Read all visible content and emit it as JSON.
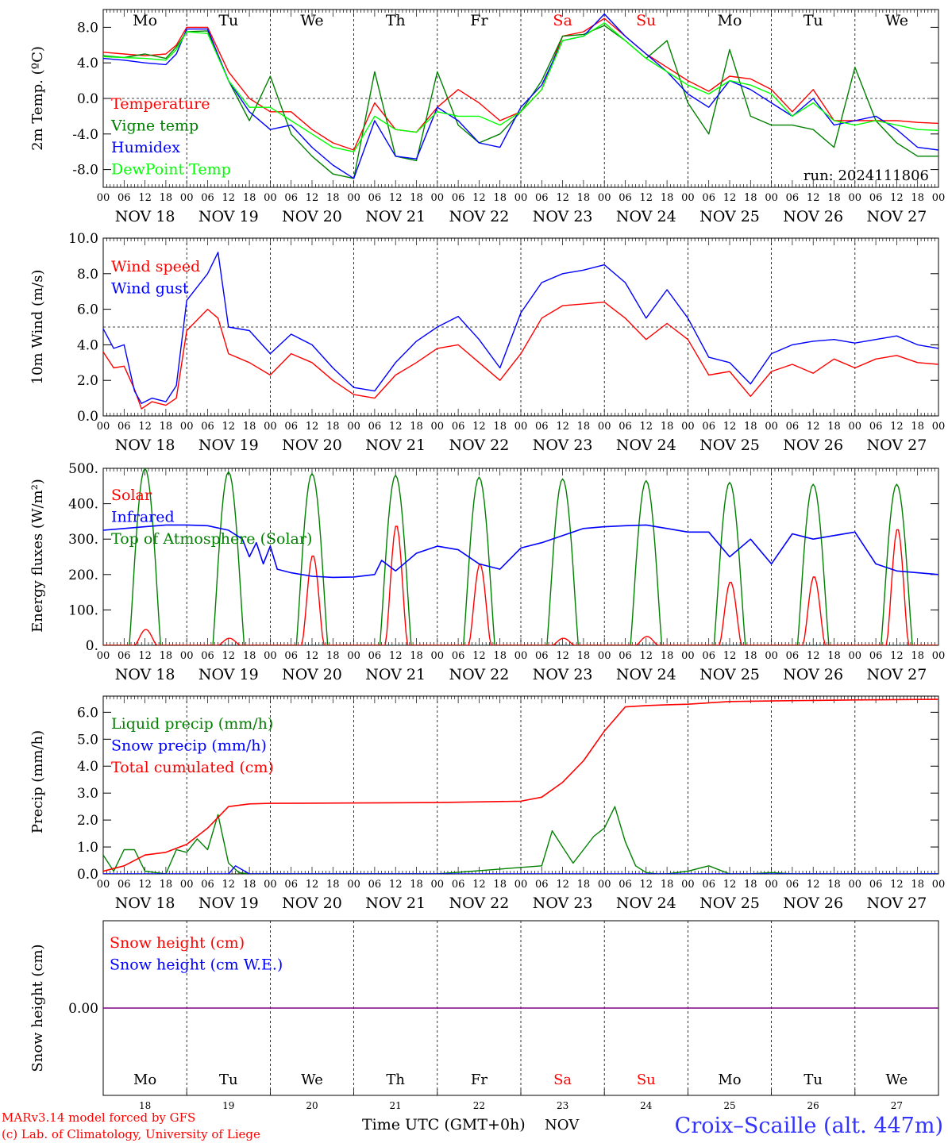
{
  "time_axis": {
    "hour_ticks": [
      "00",
      "06",
      "12",
      "18"
    ],
    "final_tick": "00",
    "dates": [
      "NOV 18",
      "NOV 19",
      "NOV 20",
      "NOV 21",
      "NOV 22",
      "NOV 23",
      "NOV 24",
      "NOV 25",
      "NOV 26",
      "NOV 27"
    ],
    "day_names": [
      "Mo",
      "Tu",
      "We",
      "Th",
      "Fr",
      "Sa",
      "Su",
      "Mo",
      "Tu",
      "We"
    ],
    "day_colors": [
      "#000000",
      "#000000",
      "#000000",
      "#000000",
      "#000000",
      "#ff0000",
      "#ff0000",
      "#000000",
      "#000000",
      "#000000"
    ],
    "day_numbers": [
      "18",
      "19",
      "20",
      "21",
      "22",
      "23",
      "24",
      "25",
      "26",
      "27"
    ]
  },
  "footer": {
    "model_line1": "MARv3.14 model forced by GFS",
    "model_line2": "(c) Lab. of Climatology, University of Liege",
    "xlabel": "Time UTC (GMT+0h)",
    "month": "NOV",
    "station": "Croix–Scaille (alt. 447m)"
  },
  "colors": {
    "red": "#ff0000",
    "green": "#008000",
    "blue": "#0000ff",
    "lightgreen": "#00ff00",
    "purple": "#800080",
    "station": "#3333ff"
  },
  "chart_data": [
    {
      "id": "temperature",
      "type": "line",
      "ylabel": "2m Temp. (ºC)",
      "ylim": [
        -10,
        10
      ],
      "yticks": [
        "8.0",
        "4.0",
        "0.0",
        "-4.0",
        "-8.0"
      ],
      "ytick_values": [
        8,
        4,
        0,
        -4,
        -8
      ],
      "ref_line": 0,
      "annotation": "run: 2024111806",
      "x": [
        0,
        6,
        12,
        18,
        21,
        24,
        30,
        36,
        42,
        48,
        54,
        60,
        66,
        72,
        78,
        84,
        90,
        96,
        102,
        108,
        114,
        120,
        126,
        132,
        138,
        144,
        150,
        156,
        162,
        168,
        174,
        180,
        186,
        192,
        198,
        204,
        210,
        216,
        222,
        228,
        234,
        240
      ],
      "series": [
        {
          "name": "Temperature",
          "color": "#ff0000",
          "values": [
            5.2,
            5.0,
            4.8,
            5.0,
            6.0,
            8.0,
            8.0,
            3.0,
            0.0,
            -1.5,
            -1.5,
            -3.5,
            -5.0,
            -5.8,
            -0.5,
            -3.5,
            -3.8,
            -1.0,
            1.0,
            -0.5,
            -2.5,
            -1.5,
            1.0,
            7.0,
            7.5,
            9.0,
            7.0,
            5.0,
            3.5,
            2.0,
            0.8,
            2.5,
            2.2,
            1.0,
            -1.5,
            1.0,
            -2.5,
            -2.5,
            -2.5,
            -2.5,
            -2.7,
            -2.8
          ]
        },
        {
          "name": "Vigne temp",
          "color": "#008000",
          "values": [
            4.8,
            4.6,
            5.0,
            4.5,
            5.8,
            7.5,
            7.6,
            2.0,
            -2.5,
            2.5,
            -4.0,
            -6.5,
            -8.5,
            -9.0,
            3.0,
            -6.5,
            -7.0,
            3.0,
            -3.0,
            -5.0,
            -4.0,
            -1.5,
            2.0,
            7.0,
            7.2,
            8.2,
            6.5,
            4.5,
            6.5,
            -0.5,
            -4.0,
            5.5,
            -2.0,
            -3.0,
            -3.0,
            -3.5,
            -5.5,
            3.5,
            -2.5,
            -5.0,
            -6.5,
            -6.5
          ]
        },
        {
          "name": "Humidex",
          "color": "#0000ff",
          "values": [
            4.5,
            4.3,
            4.0,
            3.8,
            5.0,
            7.8,
            7.8,
            2.0,
            -1.5,
            -3.5,
            -3.0,
            -5.5,
            -7.5,
            -9.0,
            -2.5,
            -6.5,
            -6.8,
            -1.0,
            -2.5,
            -5.0,
            -5.5,
            -1.0,
            1.5,
            6.5,
            7.0,
            9.5,
            7.0,
            5.0,
            3.0,
            0.5,
            -1.0,
            2.0,
            1.0,
            -0.5,
            -2.0,
            0.0,
            -3.0,
            -2.5,
            -2.0,
            -3.5,
            -5.5,
            -5.8
          ]
        },
        {
          "name": "DewPoint Temp",
          "color": "#00ff00",
          "values": [
            4.7,
            4.6,
            4.5,
            4.3,
            5.5,
            7.5,
            7.3,
            2.0,
            -1.0,
            -1.0,
            -2.5,
            -4.0,
            -5.5,
            -6.0,
            -2.0,
            -3.5,
            -3.8,
            -1.5,
            -2.0,
            -2.0,
            -3.0,
            -1.5,
            1.0,
            6.5,
            7.0,
            8.5,
            6.5,
            4.5,
            3.0,
            1.5,
            0.5,
            2.0,
            1.5,
            0.5,
            -2.0,
            -0.5,
            -2.5,
            -3.0,
            -2.5,
            -3.0,
            -3.5,
            -3.6
          ]
        }
      ]
    },
    {
      "id": "wind",
      "type": "line",
      "ylabel": "10m Wind (m/s)",
      "ylim": [
        0,
        10
      ],
      "yticks": [
        "10.0",
        "8.0",
        "6.0",
        "4.0",
        "2.0",
        "0.0"
      ],
      "ytick_values": [
        10,
        8,
        6,
        4,
        2,
        0
      ],
      "ref_line": 5,
      "x": [
        0,
        3,
        6,
        9,
        11,
        14,
        18,
        21,
        24,
        30,
        33,
        36,
        42,
        48,
        54,
        60,
        66,
        72,
        78,
        84,
        90,
        96,
        102,
        108,
        114,
        120,
        126,
        132,
        138,
        144,
        150,
        156,
        162,
        168,
        174,
        180,
        186,
        192,
        198,
        204,
        210,
        216,
        222,
        228,
        234,
        240
      ],
      "series": [
        {
          "name": "Wind speed",
          "color": "#ff0000",
          "values": [
            3.6,
            2.7,
            2.8,
            1.5,
            0.4,
            0.8,
            0.6,
            1.0,
            4.8,
            6.0,
            5.5,
            3.5,
            3.0,
            2.3,
            3.5,
            3.0,
            2.0,
            1.2,
            1.0,
            2.3,
            3.0,
            3.8,
            4.0,
            3.0,
            2.0,
            3.5,
            5.5,
            6.2,
            6.3,
            6.4,
            5.5,
            4.3,
            5.2,
            4.3,
            2.3,
            2.5,
            1.1,
            2.5,
            2.9,
            2.4,
            3.2,
            2.7,
            3.2,
            3.4,
            3.0,
            2.9
          ]
        },
        {
          "name": "Wind gust",
          "color": "#0000ff",
          "values": [
            4.9,
            3.8,
            4.0,
            1.4,
            0.7,
            1.0,
            0.8,
            1.7,
            6.5,
            8.0,
            9.2,
            5.0,
            4.8,
            3.5,
            4.6,
            4.0,
            2.7,
            1.6,
            1.4,
            3.0,
            4.2,
            5.0,
            5.6,
            4.3,
            2.7,
            5.8,
            7.5,
            8.0,
            8.2,
            8.5,
            7.5,
            5.5,
            7.1,
            5.5,
            3.3,
            3.0,
            1.8,
            3.5,
            4.0,
            4.2,
            4.3,
            4.1,
            4.3,
            4.5,
            4.0,
            3.8
          ]
        }
      ]
    },
    {
      "id": "energy",
      "type": "line",
      "ylabel": "Energy fluxes (W/m²)",
      "ylim": [
        0,
        500
      ],
      "yticks": [
        "500.",
        "400.",
        "300.",
        "200.",
        "100.",
        "0."
      ],
      "ytick_values": [
        500,
        400,
        300,
        200,
        100,
        0
      ],
      "toa_peaks": [
        500,
        490,
        485,
        480,
        475,
        470,
        465,
        460,
        455,
        455
      ],
      "solar_peaks": [
        45,
        20,
        255,
        340,
        230,
        20,
        25,
        180,
        195,
        330
      ],
      "infrared": {
        "x": [
          0,
          6,
          12,
          18,
          24,
          30,
          36,
          40,
          42,
          44,
          46,
          48,
          50,
          54,
          60,
          66,
          72,
          78,
          80,
          84,
          90,
          96,
          102,
          108,
          114,
          120,
          126,
          132,
          138,
          144,
          150,
          156,
          162,
          168,
          174,
          180,
          186,
          192,
          198,
          204,
          210,
          216,
          222,
          228,
          234,
          240
        ],
        "values": [
          325,
          330,
          335,
          340,
          340,
          338,
          325,
          300,
          250,
          290,
          230,
          280,
          215,
          205,
          195,
          192,
          193,
          200,
          240,
          210,
          260,
          280,
          270,
          230,
          215,
          275,
          290,
          310,
          330,
          335,
          338,
          340,
          330,
          320,
          320,
          250,
          300,
          230,
          315,
          300,
          310,
          320,
          230,
          210,
          205,
          200
        ]
      },
      "series": [
        {
          "name": "Solar",
          "color": "#ff0000"
        },
        {
          "name": "Infrared",
          "color": "#0000ff"
        },
        {
          "name": "Top of Atmosphere (Solar)",
          "color": "#008000"
        }
      ]
    },
    {
      "id": "precip",
      "type": "line",
      "ylabel": "Precip (mm/h)",
      "ylim": [
        0,
        6.6
      ],
      "yticks": [
        "6.0",
        "5.0",
        "4.0",
        "3.0",
        "2.0",
        "1.0",
        "0.0"
      ],
      "ytick_values": [
        6,
        5,
        4,
        3,
        2,
        1,
        0
      ],
      "liquid": {
        "x": [
          0,
          3,
          6,
          9,
          12,
          15,
          18,
          21,
          24,
          27,
          30,
          33,
          36,
          39,
          42,
          45,
          48,
          96,
          126,
          129,
          132,
          135,
          138,
          141,
          144,
          147,
          150,
          153,
          156,
          159,
          162,
          168,
          174,
          180,
          186,
          192,
          198,
          204,
          210,
          216,
          222,
          228,
          234,
          240
        ],
        "values": [
          0.7,
          0.1,
          0.9,
          0.9,
          0.1,
          0.05,
          0.0,
          0.9,
          0.8,
          1.3,
          0.9,
          2.2,
          0.4,
          0.05,
          0.0,
          0.0,
          0.0,
          0.0,
          0.3,
          1.6,
          1.0,
          0.4,
          0.9,
          1.4,
          1.7,
          2.5,
          1.2,
          0.3,
          0.05,
          0.0,
          0.0,
          0.1,
          0.3,
          0.0,
          0.0,
          0.05,
          0.0,
          0.0,
          0.0,
          0.0,
          0.0,
          0.0,
          0.0,
          0.0
        ]
      },
      "snow": {
        "x": [
          0,
          36,
          38,
          40,
          42,
          48,
          240
        ],
        "values": [
          0.0,
          0.0,
          0.3,
          0.15,
          0.0,
          0.0,
          0.0
        ]
      },
      "cumulated": {
        "x": [
          0,
          6,
          12,
          18,
          24,
          30,
          36,
          42,
          48,
          96,
          120,
          126,
          132,
          138,
          144,
          150,
          156,
          162,
          168,
          180,
          192,
          204,
          216,
          228,
          240
        ],
        "values": [
          0.1,
          0.3,
          0.7,
          0.8,
          1.1,
          1.7,
          2.5,
          2.6,
          2.62,
          2.65,
          2.7,
          2.85,
          3.4,
          4.2,
          5.3,
          6.2,
          6.25,
          6.28,
          6.3,
          6.4,
          6.42,
          6.44,
          6.46,
          6.47,
          6.48
        ]
      },
      "series": [
        {
          "name": "Liquid precip (mm/h)",
          "color": "#008000"
        },
        {
          "name": "Snow precip (mm/h)",
          "color": "#0000ff"
        },
        {
          "name": "Total cumulated (cm)",
          "color": "#ff0000"
        }
      ]
    },
    {
      "id": "snow",
      "type": "line",
      "ylabel": "Snow height (cm)",
      "yticks": [
        "0.00"
      ],
      "ytick_values": [
        0
      ],
      "x": [
        0,
        240
      ],
      "series": [
        {
          "name": "Snow height (cm)",
          "color": "#ff0000",
          "values": [
            0,
            0
          ]
        },
        {
          "name": "Snow height (cm W.E.)",
          "color": "#0000ff",
          "values": [
            0,
            0
          ]
        }
      ]
    }
  ]
}
